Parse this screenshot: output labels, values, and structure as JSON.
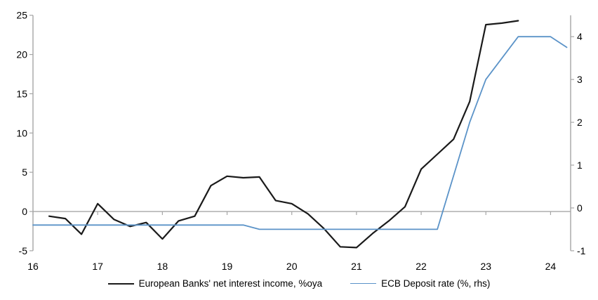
{
  "chart_data": {
    "type": "line",
    "title": "",
    "x_axis": {
      "tick_labels": [
        "16",
        "17",
        "18",
        "19",
        "20",
        "21",
        "22",
        "23",
        "24"
      ],
      "tick_values": [
        16,
        17,
        18,
        19,
        20,
        21,
        22,
        23,
        24
      ],
      "range": [
        16,
        24.31
      ]
    },
    "left_axis": {
      "tick_values": [
        -5,
        0,
        5,
        10,
        15,
        20,
        25
      ],
      "range": [
        -5,
        25
      ]
    },
    "right_axis": {
      "tick_values": [
        -1,
        0,
        1,
        2,
        3,
        4
      ],
      "range": [
        -1,
        4.5
      ]
    },
    "grid": "zero-line-only",
    "legend_position": "bottom",
    "axis_color": "#a6a6a6",
    "zero_line_color": "#a6a6a6",
    "series": [
      {
        "name": "European Banks' net interest income, %oya",
        "axis": "left",
        "color": "#1a1a1a",
        "stroke_width": 2.2,
        "x": [
          16.25,
          16.5,
          16.75,
          17,
          17.25,
          17.5,
          17.75,
          18,
          18.25,
          18.5,
          18.75,
          19,
          19.25,
          19.5,
          19.75,
          20,
          20.25,
          20.5,
          20.75,
          21,
          21.25,
          21.5,
          21.75,
          22,
          22.25,
          22.5,
          22.75,
          23,
          23.25,
          23.5
        ],
        "values": [
          -0.6,
          -0.9,
          -2.9,
          1.0,
          -1.0,
          -1.9,
          -1.4,
          -3.5,
          -1.2,
          -0.6,
          3.3,
          4.5,
          4.3,
          4.4,
          1.4,
          1.0,
          -0.3,
          -2.2,
          -4.5,
          -4.6,
          -2.8,
          -1.2,
          0.6,
          5.4,
          7.3,
          9.2,
          14.0,
          23.8,
          24.0,
          24.3
        ]
      },
      {
        "name": "ECB Deposit rate (%, rhs)",
        "axis": "right",
        "color": "#5b93c8",
        "stroke_width": 1.8,
        "x": [
          16,
          16.25,
          16.5,
          16.75,
          17,
          17.25,
          17.5,
          17.75,
          18,
          18.25,
          18.5,
          18.75,
          19,
          19.25,
          19.5,
          19.75,
          20,
          20.25,
          20.5,
          20.75,
          21,
          21.25,
          21.5,
          21.75,
          22,
          22.25,
          22.5,
          22.75,
          23,
          23.25,
          23.5,
          23.75,
          24,
          24.25
        ],
        "values": [
          -0.4,
          -0.4,
          -0.4,
          -0.4,
          -0.4,
          -0.4,
          -0.4,
          -0.4,
          -0.4,
          -0.4,
          -0.4,
          -0.4,
          -0.4,
          -0.4,
          -0.5,
          -0.5,
          -0.5,
          -0.5,
          -0.5,
          -0.5,
          -0.5,
          -0.5,
          -0.5,
          -0.5,
          -0.5,
          -0.5,
          0.75,
          2.0,
          3.0,
          3.5,
          4.0,
          4.0,
          4.0,
          3.75
        ]
      }
    ]
  }
}
